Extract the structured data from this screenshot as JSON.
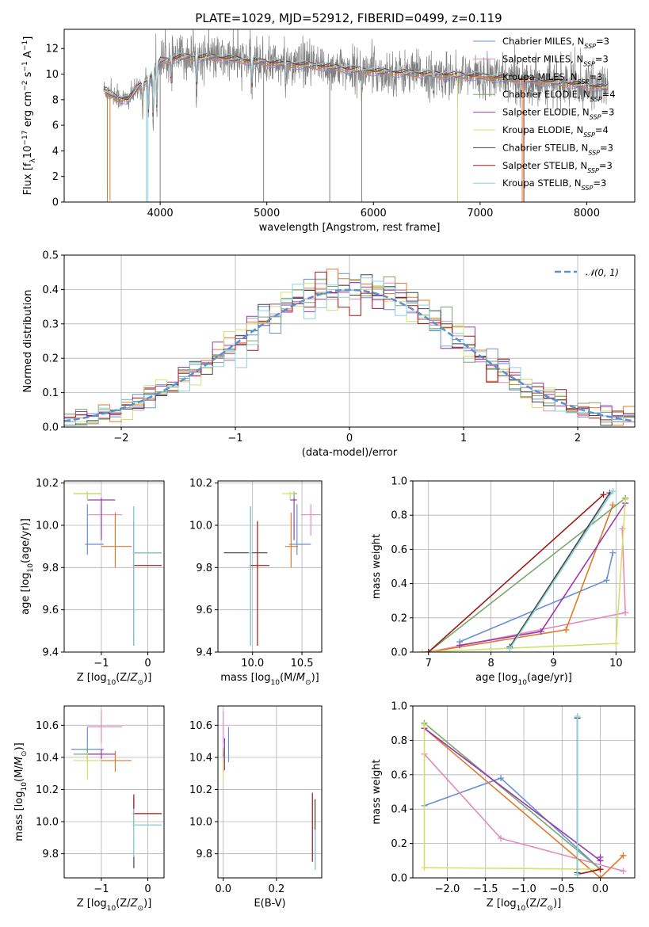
{
  "title": "PLATE=1029, MJD=52912, FIBERID=0499, z=0.119",
  "colors": {
    "chabrier_miles": "#6a8fd8",
    "salpeter_miles": "#e68ab8",
    "kroupa_miles": "#e07a2a",
    "chabrier_elodie": "#7aa86a",
    "salpeter_elodie": "#9a3ab0",
    "kroupa_elodie": "#d4e06a",
    "chabrier_stelib": "#444444",
    "salpeter_stelib": "#a01818",
    "kroupa_stelib": "#8ad4dc",
    "data": "#808080",
    "normal": "#5a8fd0",
    "grid": "#b0b0b0"
  },
  "chart_data": [
    {
      "id": "spectrum",
      "type": "line",
      "xlabel": "wavelength [Angstrom, rest frame]",
      "ylabel": "Flux [f_λ10^-17 erg cm^-2 s^-1 A^-1]",
      "xlim": [
        3100,
        8450
      ],
      "ylim": [
        0,
        13.5
      ],
      "xticks": [
        "4000",
        "5000",
        "6000",
        "7000",
        "8000"
      ],
      "yticks": [
        "0",
        "2",
        "4",
        "6",
        "8",
        "10",
        "12"
      ],
      "legend_position": "top-right",
      "legend": [
        "Chabrier MILES, N_SSP=3",
        "Salpeter MILES, N_SSP=3",
        "Kroupa MILES, N_SSP=3",
        "Chabrier ELODIE, N_SSP=4",
        "Salpeter ELODIE, N_SSP=3",
        "Kroupa ELODIE, N_SSP=4",
        "Chabrier STELIB, N_SSP=3",
        "Salpeter STELIB, N_SSP=3",
        "Kroupa STELIB, N_SSP=3"
      ],
      "continuum": {
        "x": [
          3470,
          3600,
          3700,
          3800,
          3900,
          4000,
          4200,
          4500,
          5000,
          5500,
          6000,
          6500,
          7000,
          7500,
          8000,
          8200
        ],
        "y": [
          8.8,
          8.1,
          8.0,
          9.0,
          9.6,
          11.0,
          11.3,
          11.3,
          10.9,
          10.6,
          10.2,
          10.0,
          9.8,
          9.5,
          9.1,
          8.9
        ]
      }
    },
    {
      "id": "residuals",
      "type": "line",
      "xlabel": "(data-model)/error",
      "ylabel": "Normed distribution",
      "xlim": [
        -2.5,
        2.5
      ],
      "ylim": [
        0,
        0.5
      ],
      "xticks": [
        "−2",
        "−1",
        "0",
        "1",
        "2"
      ],
      "yticks": [
        "0.0",
        "0.1",
        "0.2",
        "0.3",
        "0.4",
        "0.5"
      ],
      "legend": [
        "𝒩(0, 1)"
      ],
      "legend_position": "top-right",
      "grid": true
    },
    {
      "id": "age-vs-Z",
      "type": "scatter",
      "xlabel": "Z [log10(Z/Z⊙)]",
      "ylabel": "age  [log10(age/yr)]",
      "xlim": [
        -1.8,
        0.35
      ],
      "ylim": [
        9.4,
        10.21
      ],
      "xticks": [
        "−1",
        "0"
      ],
      "yticks": [
        "9.4",
        "9.6",
        "9.8",
        "10.0",
        "10.2"
      ],
      "grid": true,
      "points": [
        {
          "x": -1.3,
          "y": 9.91,
          "xerr": [
            0.05,
            0.35
          ],
          "yerr": [
            0.05,
            0.19
          ]
        },
        {
          "x": -1.0,
          "y": 10.05,
          "xerr": [
            0.3,
            0.45
          ],
          "yerr": [
            0.1,
            0.05
          ]
        },
        {
          "x": -0.7,
          "y": 9.9,
          "xerr": [
            0.3,
            0.35
          ],
          "yerr": [
            0.1,
            0.16
          ]
        },
        {
          "x": -1.3,
          "y": 10.15,
          "xerr": [
            0.3,
            0.3
          ],
          "yerr": [
            0.03,
            0.01
          ]
        },
        {
          "x": -1.0,
          "y": 10.12,
          "xerr": [
            0.3,
            0.3
          ],
          "yerr": [
            0.19,
            0.01
          ]
        },
        {
          "x": -1.3,
          "y": 10.15,
          "xerr": [
            0.3,
            0.3
          ],
          "yerr": [
            0.03,
            0.01
          ]
        },
        {
          "x": -0.3,
          "y": 9.87,
          "xerr": [
            0.02,
            0.6
          ],
          "yerr": [
            0.44,
            0.22
          ]
        },
        {
          "x": -0.3,
          "y": 9.81,
          "xerr": [
            0.02,
            0.6
          ],
          "yerr": [
            0.38,
            0.21
          ]
        },
        {
          "x": -0.3,
          "y": 9.87,
          "xerr": [
            0.02,
            0.6
          ],
          "yerr": [
            0.44,
            0.22
          ]
        }
      ]
    },
    {
      "id": "age-vs-mass",
      "type": "scatter",
      "xlabel": "mass [log10(M/M⊙)]",
      "ylabel": "",
      "xlim": [
        9.65,
        10.7
      ],
      "ylim": [
        9.4,
        10.21
      ],
      "xticks": [
        "10.0",
        "10.5"
      ],
      "yticks": [
        "9.4",
        "9.6",
        "9.8",
        "10.0",
        "10.2"
      ],
      "grid": true,
      "points": [
        {
          "x": 10.45,
          "y": 9.91,
          "xerr": [
            0.08,
            0.14
          ],
          "yerr": [
            0.05,
            0.19
          ]
        },
        {
          "x": 10.59,
          "y": 10.05,
          "xerr": [
            0.1,
            0.1
          ],
          "yerr": [
            0.1,
            0.05
          ]
        },
        {
          "x": 10.39,
          "y": 9.9,
          "xerr": [
            0.06,
            0.07
          ],
          "yerr": [
            0.1,
            0.16
          ]
        },
        {
          "x": 10.42,
          "y": 10.15,
          "xerr": [
            0.04,
            0.03
          ],
          "yerr": [
            0.03,
            0.01
          ]
        },
        {
          "x": 10.42,
          "y": 10.12,
          "xerr": [
            0.04,
            0.03
          ],
          "yerr": [
            0.19,
            0.01
          ]
        },
        {
          "x": 10.38,
          "y": 10.15,
          "xerr": [
            0.08,
            0.05
          ],
          "yerr": [
            0.03,
            0.01
          ]
        },
        {
          "x": 9.98,
          "y": 9.87,
          "xerr": [
            0.27,
            0.17
          ],
          "yerr": [
            0.44,
            0.22
          ]
        },
        {
          "x": 10.05,
          "y": 9.81,
          "xerr": [
            0.08,
            0.12
          ],
          "yerr": [
            0.38,
            0.21
          ]
        },
        {
          "x": 9.98,
          "y": 9.87,
          "xerr": [
            0.02,
            0.02
          ],
          "yerr": [
            0.44,
            0.22
          ]
        }
      ]
    },
    {
      "id": "weight-vs-age",
      "type": "line",
      "xlabel": "age  [log10(age/yr)]",
      "ylabel": "mass weight",
      "xlim": [
        6.75,
        10.3
      ],
      "ylim": [
        0,
        1.0
      ],
      "xticks": [
        "7",
        "8",
        "9",
        "10"
      ],
      "yticks": [
        "0.0",
        "0.2",
        "0.4",
        "0.6",
        "0.8",
        "1.0"
      ],
      "grid": true,
      "series": [
        {
          "x": [
            7.5,
            9.85,
            9.95
          ],
          "y": [
            0.06,
            0.42,
            0.58
          ]
        },
        {
          "x": [
            7.0,
            10.15,
            10.1
          ],
          "y": [
            0.0,
            0.23,
            0.72
          ]
        },
        {
          "x": [
            7.0,
            9.2,
            9.95
          ],
          "y": [
            0.0,
            0.13,
            0.86
          ]
        },
        {
          "x": [
            7.0,
            10.15
          ],
          "y": [
            0.0,
            0.9
          ]
        },
        {
          "x": [
            7.5,
            8.8,
            10.15
          ],
          "y": [
            0.04,
            0.12,
            0.87
          ]
        },
        {
          "x": [
            6.9,
            10.0,
            10.15
          ],
          "y": [
            0.0,
            0.05,
            0.89
          ]
        },
        {
          "x": [
            8.3,
            9.9
          ],
          "y": [
            0.03,
            0.93
          ]
        },
        {
          "x": [
            7.0,
            9.8
          ],
          "y": [
            0.0,
            0.92
          ]
        },
        {
          "x": [
            8.3,
            9.95
          ],
          "y": [
            0.02,
            0.94
          ]
        }
      ]
    },
    {
      "id": "mass-vs-Z",
      "type": "scatter",
      "xlabel": "Z [log10(Z/Z⊙)]",
      "ylabel": "mass [log10(M/M⊙)]",
      "xlim": [
        -1.8,
        0.35
      ],
      "ylim": [
        9.65,
        10.72
      ],
      "xticks": [
        "−1",
        "0"
      ],
      "yticks": [
        "9.8",
        "10.0",
        "10.2",
        "10.4",
        "10.6"
      ],
      "grid": true,
      "points": [
        {
          "x": -1.3,
          "y": 10.45,
          "xerr": [
            0.35,
            0.35
          ],
          "yerr": [
            0.08,
            0.14
          ]
        },
        {
          "x": -1.0,
          "y": 10.59,
          "xerr": [
            0.3,
            0.45
          ],
          "yerr": [
            0.1,
            0.1
          ]
        },
        {
          "x": -0.7,
          "y": 10.38,
          "xerr": [
            0.3,
            0.35
          ],
          "yerr": [
            0.07,
            0.06
          ]
        },
        {
          "x": -1.3,
          "y": 10.42,
          "xerr": [
            0.3,
            0.3
          ],
          "yerr": [
            0.05,
            0.04
          ]
        },
        {
          "x": -1.0,
          "y": 10.42,
          "xerr": [
            0.3,
            0.3
          ],
          "yerr": [
            0.03,
            0.03
          ]
        },
        {
          "x": -1.3,
          "y": 10.38,
          "xerr": [
            0.3,
            0.3
          ],
          "yerr": [
            0.12,
            0.05
          ]
        },
        {
          "x": -0.3,
          "y": 9.98,
          "xerr": [
            0.02,
            0.6
          ],
          "yerr": [
            0.27,
            0.17
          ]
        },
        {
          "x": -0.3,
          "y": 10.05,
          "xerr": [
            0.02,
            0.6
          ],
          "yerr": [
            0.08,
            0.12
          ]
        },
        {
          "x": -0.3,
          "y": 9.98,
          "xerr": [
            0.02,
            0.6
          ],
          "yerr": [
            0.2,
            0.1
          ]
        }
      ]
    },
    {
      "id": "mass-vs-EBV",
      "type": "scatter",
      "xlabel": "E(B-V)",
      "ylabel": "",
      "xlim": [
        -0.02,
        0.37
      ],
      "ylim": [
        9.65,
        10.72
      ],
      "xticks": [
        "0.0",
        "0.2"
      ],
      "yticks": [
        "9.8",
        "10.0",
        "10.2",
        "10.4",
        "10.6"
      ],
      "grid": true,
      "points": [
        {
          "x": 0.02,
          "y": 10.45,
          "yerr": [
            0.08,
            0.14
          ]
        },
        {
          "x": 0.0,
          "y": 10.59,
          "yerr": [
            0.1,
            0.1
          ]
        },
        {
          "x": 0.0,
          "y": 10.38,
          "yerr": [
            0.07,
            0.06
          ]
        },
        {
          "x": 0.0,
          "y": 10.42,
          "yerr": [
            0.05,
            0.04
          ]
        },
        {
          "x": 0.005,
          "y": 10.42,
          "yerr": [
            0.1,
            0.1
          ]
        },
        {
          "x": 0.0,
          "y": 10.35,
          "yerr": [
            0.1,
            0.05
          ]
        },
        {
          "x": 0.345,
          "y": 9.92,
          "yerr": [
            0.22,
            0.22
          ]
        },
        {
          "x": 0.335,
          "y": 10.0,
          "yerr": [
            0.25,
            0.18
          ]
        },
        {
          "x": 0.345,
          "y": 9.85,
          "yerr": [
            0.15,
            0.1
          ]
        }
      ]
    },
    {
      "id": "weight-vs-Z",
      "type": "line",
      "xlabel": "Z [log10(Z/Z⊙)]",
      "ylabel": "mass weight",
      "xlim": [
        -2.45,
        0.45
      ],
      "ylim": [
        0,
        1.0
      ],
      "xticks": [
        "−2.0",
        "−1.5",
        "−1.0",
        "−0.5",
        "0.0"
      ],
      "yticks": [
        "0.0",
        "0.2",
        "0.4",
        "0.6",
        "0.8",
        "1.0"
      ],
      "grid": true,
      "series": [
        {
          "x": [
            -2.3,
            -1.3,
            0.0
          ],
          "y": [
            0.42,
            0.58,
            0.05
          ]
        },
        {
          "x": [
            -2.3,
            -1.3,
            0.3
          ],
          "y": [
            0.72,
            0.23,
            0.04
          ]
        },
        {
          "x": [
            -2.3,
            0.0,
            0.3
          ],
          "y": [
            0.87,
            0.0,
            0.13
          ]
        },
        {
          "x": [
            -2.3,
            0.0
          ],
          "y": [
            0.9,
            0.05
          ]
        },
        {
          "x": [
            -2.3,
            0.0,
            0.0
          ],
          "y": [
            0.87,
            0.1,
            0.12
          ]
        },
        {
          "x": [
            -2.3,
            -2.3,
            0.0
          ],
          "y": [
            0.89,
            0.06,
            0.05
          ]
        },
        {
          "x": [
            -0.3,
            -0.3
          ],
          "y": [
            0.03,
            0.93
          ]
        },
        {
          "x": [
            -0.3,
            0.0
          ],
          "y": [
            0.02,
            0.05
          ]
        },
        {
          "x": [
            -0.3,
            -0.3
          ],
          "y": [
            0.02,
            0.94
          ]
        }
      ]
    }
  ]
}
